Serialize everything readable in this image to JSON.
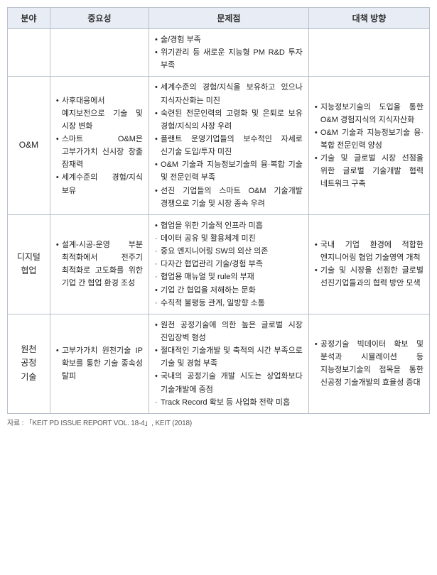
{
  "headers": [
    "분야",
    "중요성",
    "문제점",
    "대책 방향"
  ],
  "rows": [
    {
      "field": "",
      "importance": [],
      "problems": [
        {
          "t": "술/경험 부족",
          "sub": false,
          "pad": true
        },
        {
          "t": "위기관리 등 새로운 지능형 PM R&D 투자 부족",
          "sub": false
        }
      ],
      "measures": []
    },
    {
      "field": "O&M",
      "importance": [
        {
          "t": "사후대응에서 예지보전으로 기술 및 시장 변화",
          "sub": false
        },
        {
          "t": "스마트 O&M은 고부가가치 신시장 창출 잠재력",
          "sub": false
        },
        {
          "t": "세계수준의 경험/지식 보유",
          "sub": false
        }
      ],
      "problems": [
        {
          "t": "세계수준의 경험/지식을 보유하고 있으나 지식자산화는 미진",
          "sub": false
        },
        {
          "t": "숙련된 전문인력의 고령화 및 은퇴로 보유 경험/지식의 사장 우려",
          "sub": false
        },
        {
          "t": "플랜트 운영기업들의 보수적인 자세로 신기술 도입/투자 미진",
          "sub": false
        },
        {
          "t": "O&M 기술과 지능정보기술의 융·복합 기술 및 전문인력 부족",
          "sub": false
        },
        {
          "t": "선진 기업들의 스마트 O&M 기술개발 경쟁으로 기술 및 시장 종속 우려",
          "sub": false
        }
      ],
      "measures": [
        {
          "t": "지능정보기술의 도입을 통한 O&M 경험지식의 지식자산화",
          "sub": false
        },
        {
          "t": "O&M 기술과 지능정보기술 융·복합 전문인력 양성",
          "sub": false
        },
        {
          "t": "기술 및 글로벌 시장 선점을 위한 글로벌 기술개발 협력 네트워크 구축",
          "sub": false
        }
      ]
    },
    {
      "field": "디지털\n협업",
      "importance": [
        {
          "t": "설계-시공-운영 부분 최적화에서 전주기 최적화로 고도화를 위한 기업 간 협업 환경 조성",
          "sub": false
        }
      ],
      "problems": [
        {
          "t": "협업을 위한 기술적 인프라 미흡",
          "sub": false
        },
        {
          "t": "데이터 공유 및 활용체계 미진",
          "sub": true
        },
        {
          "t": "중요 엔지니어링 SW의 외산 의존",
          "sub": true
        },
        {
          "t": "다자간 협업관리 기술/경험 부족",
          "sub": true
        },
        {
          "t": "협업용 매뉴얼 및 rule의 부재",
          "sub": true
        },
        {
          "t": "기업 간 협업을 저해하는 문화",
          "sub": false
        },
        {
          "t": "수직적 불평등 관계, 일방향 소통",
          "sub": true
        }
      ],
      "measures": [
        {
          "t": "국내 기업 환경에 적합한 엔지니어링 협업 기술영역 개척",
          "sub": false
        },
        {
          "t": "기술 및 시장을 선점한 글로벌 선진기업들과의 협력 방안 모색",
          "sub": false
        }
      ]
    },
    {
      "field": "원천\n공정\n기술",
      "importance": [
        {
          "t": "고부가가치 원천기술 IP 확보를 통한 기술 종속성 탈피",
          "sub": false
        }
      ],
      "problems": [
        {
          "t": "원천 공정기술에 의한 높은 글로벌 시장 진입장벽 형성",
          "sub": false
        },
        {
          "t": "절대적인 기술개발 및 축적의 시간 부족으로 기술 및 경험 부족",
          "sub": false
        },
        {
          "t": "국내의 공정기술 개발 시도는 상업화보다 기술개발에 중점",
          "sub": false
        },
        {
          "t": "Track Record 확보 등 사업화 전략 미흡",
          "sub": true
        }
      ],
      "measures": [
        {
          "t": "공정기술 빅데이터 확보 및 분석과 시뮬레이션 등 지능정보기술의 접목을 통한 신공정 기술개발의 효율성 증대",
          "sub": false
        }
      ]
    }
  ],
  "footer": "자료 : 「KEIT PD ISSUE REPORT VOL. 18-4」, KEIT (2018)"
}
